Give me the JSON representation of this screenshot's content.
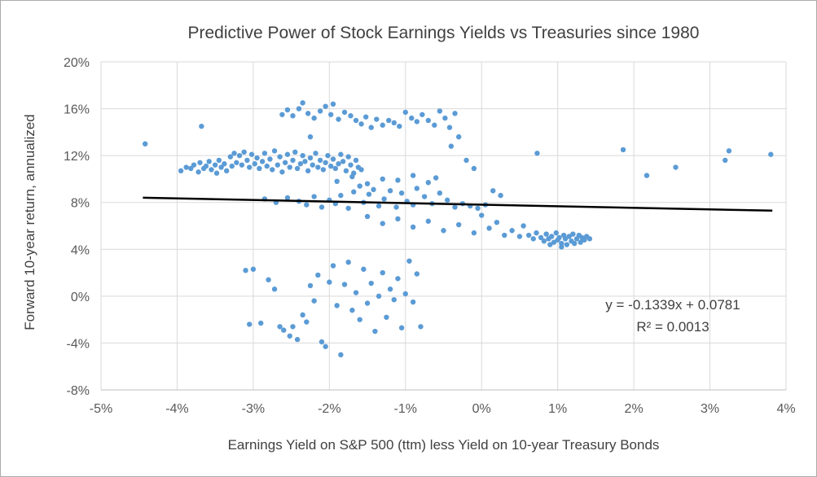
{
  "chart_data": {
    "type": "scatter",
    "title": "Predictive Power of Stock Earnings Yields vs Treasuries since 1980",
    "xlabel": "Earnings Yield on S&P 500 (ttm) less Yield on 10-year Treasury Bonds",
    "ylabel": "Forward 10-year return, annualized",
    "xlim": [
      -5,
      4
    ],
    "ylim": [
      -8,
      20
    ],
    "grid": true,
    "x_tick_values": [
      -5,
      -4,
      -3,
      -2,
      -1,
      0,
      1,
      2,
      3,
      4
    ],
    "x_tick_labels": [
      "-5%",
      "-4%",
      "-3%",
      "-2%",
      "-1%",
      "0%",
      "1%",
      "2%",
      "3%",
      "4%"
    ],
    "y_tick_values": [
      -8,
      -4,
      0,
      4,
      8,
      12,
      16,
      20
    ],
    "y_tick_labels": [
      "-8%",
      "-4%",
      "0%",
      "4%",
      "8%",
      "12%",
      "16%",
      "20%"
    ],
    "trendline": {
      "equation_label": "y = -0.1339x + 0.0781",
      "r2_label": "R² = 0.0013",
      "slope": -0.1339,
      "intercept": 0.0781,
      "x_start": -4.45,
      "x_end": 3.82
    },
    "colors": {
      "point": "#5b9bd5",
      "trendline": "#000000",
      "gridline": "#d9d9d9",
      "axisline": "#bfbfbf",
      "title_text": "#404040",
      "tick_text": "#595959"
    },
    "points": [
      [
        -4.42,
        13.0
      ],
      [
        -3.95,
        10.7
      ],
      [
        -3.88,
        11.0
      ],
      [
        -3.82,
        10.9
      ],
      [
        -3.78,
        11.2
      ],
      [
        -3.72,
        10.6
      ],
      [
        -3.68,
        14.5
      ],
      [
        -3.7,
        11.4
      ],
      [
        -3.65,
        10.9
      ],
      [
        -3.62,
        11.1
      ],
      [
        -3.58,
        11.5
      ],
      [
        -3.55,
        10.8
      ],
      [
        -3.5,
        11.2
      ],
      [
        -3.48,
        10.5
      ],
      [
        -3.45,
        11.6
      ],
      [
        -3.42,
        11.0
      ],
      [
        -3.38,
        11.3
      ],
      [
        -3.35,
        10.7
      ],
      [
        -3.3,
        11.9
      ],
      [
        -3.28,
        11.1
      ],
      [
        -3.25,
        12.2
      ],
      [
        -3.22,
        11.4
      ],
      [
        -3.18,
        12.0
      ],
      [
        -3.15,
        11.2
      ],
      [
        -3.12,
        12.3
      ],
      [
        -3.08,
        11.6
      ],
      [
        -3.05,
        11.0
      ],
      [
        -3.02,
        12.1
      ],
      [
        -2.98,
        11.3
      ],
      [
        -2.95,
        11.8
      ],
      [
        -2.92,
        10.9
      ],
      [
        -2.88,
        11.5
      ],
      [
        -2.85,
        12.2
      ],
      [
        -2.82,
        11.1
      ],
      [
        -2.78,
        11.7
      ],
      [
        -2.75,
        10.8
      ],
      [
        -2.72,
        12.4
      ],
      [
        -2.68,
        11.2
      ],
      [
        -2.65,
        11.9
      ],
      [
        -2.62,
        10.6
      ],
      [
        -2.58,
        11.4
      ],
      [
        -2.55,
        12.1
      ],
      [
        -2.52,
        11.0
      ],
      [
        -2.48,
        11.6
      ],
      [
        -2.45,
        12.3
      ],
      [
        -2.42,
        10.9
      ],
      [
        -2.38,
        11.3
      ],
      [
        -2.35,
        12.0
      ],
      [
        -2.32,
        11.5
      ],
      [
        -2.28,
        10.7
      ],
      [
        -2.25,
        11.8
      ],
      [
        -2.22,
        11.2
      ],
      [
        -2.18,
        12.2
      ],
      [
        -2.15,
        11.0
      ],
      [
        -2.12,
        11.6
      ],
      [
        -2.08,
        10.8
      ],
      [
        -2.05,
        11.4
      ],
      [
        -2.02,
        12.0
      ],
      [
        -1.98,
        11.1
      ],
      [
        -1.95,
        11.7
      ],
      [
        -1.92,
        10.9
      ],
      [
        -1.88,
        11.3
      ],
      [
        -1.85,
        12.1
      ],
      [
        -1.82,
        11.5
      ],
      [
        -1.78,
        10.7
      ],
      [
        -1.75,
        11.9
      ],
      [
        -1.72,
        11.2
      ],
      [
        -1.68,
        10.5
      ],
      [
        -1.65,
        11.6
      ],
      [
        -1.62,
        11.0
      ],
      [
        -1.58,
        10.8
      ],
      [
        -2.62,
        15.5
      ],
      [
        -2.55,
        15.9
      ],
      [
        -2.48,
        15.4
      ],
      [
        -2.4,
        16.0
      ],
      [
        -2.35,
        16.5
      ],
      [
        -2.28,
        15.6
      ],
      [
        -2.2,
        15.2
      ],
      [
        -2.12,
        15.8
      ],
      [
        -2.05,
        16.2
      ],
      [
        -1.98,
        15.5
      ],
      [
        -1.95,
        16.4
      ],
      [
        -1.88,
        15.1
      ],
      [
        -1.8,
        15.7
      ],
      [
        -1.72,
        15.4
      ],
      [
        -1.65,
        15.0
      ],
      [
        -1.58,
        14.7
      ],
      [
        -1.52,
        15.3
      ],
      [
        -1.45,
        14.4
      ],
      [
        -1.38,
        15.1
      ],
      [
        -1.3,
        14.6
      ],
      [
        -1.22,
        15.0
      ],
      [
        -1.15,
        14.8
      ],
      [
        -1.08,
        14.5
      ],
      [
        -1.0,
        15.7
      ],
      [
        -0.92,
        15.2
      ],
      [
        -0.85,
        14.9
      ],
      [
        -0.78,
        15.5
      ],
      [
        -0.7,
        15.0
      ],
      [
        -0.62,
        14.6
      ],
      [
        -0.55,
        15.8
      ],
      [
        -0.48,
        15.2
      ],
      [
        -0.42,
        14.4
      ],
      [
        -0.35,
        15.6
      ],
      [
        -0.3,
        13.6
      ],
      [
        -2.25,
        13.6
      ],
      [
        -0.4,
        12.8
      ],
      [
        -0.2,
        11.6
      ],
      [
        -0.1,
        10.9
      ],
      [
        -2.85,
        8.3
      ],
      [
        -2.7,
        8.0
      ],
      [
        -2.55,
        8.4
      ],
      [
        -2.4,
        8.1
      ],
      [
        -2.3,
        7.8
      ],
      [
        -2.2,
        8.5
      ],
      [
        -2.1,
        7.6
      ],
      [
        -2.0,
        8.2
      ],
      [
        -1.92,
        7.9
      ],
      [
        -1.85,
        8.6
      ],
      [
        -1.75,
        7.5
      ],
      [
        -1.68,
        8.9
      ],
      [
        -1.6,
        9.4
      ],
      [
        -1.55,
        8.0
      ],
      [
        -1.48,
        8.7
      ],
      [
        -1.42,
        9.1
      ],
      [
        -1.35,
        7.7
      ],
      [
        -1.28,
        8.3
      ],
      [
        -1.2,
        9.0
      ],
      [
        -1.12,
        7.6
      ],
      [
        -1.05,
        8.8
      ],
      [
        -0.98,
        8.1
      ],
      [
        -0.9,
        7.8
      ],
      [
        -0.85,
        9.2
      ],
      [
        -0.75,
        8.5
      ],
      [
        -0.65,
        7.9
      ],
      [
        -0.55,
        8.8
      ],
      [
        -0.45,
        8.2
      ],
      [
        -0.35,
        7.6
      ],
      [
        -0.25,
        7.9
      ],
      [
        -0.15,
        7.7
      ],
      [
        -0.05,
        7.5
      ],
      [
        0.05,
        7.8
      ],
      [
        0.15,
        9.0
      ],
      [
        0.25,
        8.6
      ],
      [
        -1.9,
        9.8
      ],
      [
        -1.7,
        10.2
      ],
      [
        -1.5,
        9.6
      ],
      [
        -1.3,
        10.0
      ],
      [
        -1.1,
        9.9
      ],
      [
        -0.9,
        10.3
      ],
      [
        -0.7,
        9.7
      ],
      [
        -0.6,
        10.1
      ],
      [
        -1.5,
        6.8
      ],
      [
        -1.3,
        6.2
      ],
      [
        -1.1,
        6.6
      ],
      [
        -0.9,
        5.9
      ],
      [
        -0.7,
        6.4
      ],
      [
        -0.5,
        5.6
      ],
      [
        -0.3,
        6.1
      ],
      [
        -0.1,
        5.4
      ],
      [
        0.0,
        6.9
      ],
      [
        0.1,
        5.8
      ],
      [
        0.2,
        6.3
      ],
      [
        0.3,
        5.2
      ],
      [
        0.4,
        5.6
      ],
      [
        0.5,
        5.1
      ],
      [
        0.55,
        6.0
      ],
      [
        0.62,
        5.2
      ],
      [
        0.68,
        4.9
      ],
      [
        0.72,
        5.4
      ],
      [
        0.78,
        5.0
      ],
      [
        0.82,
        4.7
      ],
      [
        0.85,
        5.3
      ],
      [
        0.88,
        4.9
      ],
      [
        0.92,
        5.1
      ],
      [
        0.95,
        4.6
      ],
      [
        0.98,
        5.4
      ],
      [
        1.0,
        4.8
      ],
      [
        1.02,
        5.0
      ],
      [
        1.05,
        4.5
      ],
      [
        1.08,
        5.2
      ],
      [
        1.1,
        4.9
      ],
      [
        1.12,
        4.4
      ],
      [
        1.15,
        5.1
      ],
      [
        1.18,
        4.7
      ],
      [
        1.2,
        5.3
      ],
      [
        1.22,
        4.5
      ],
      [
        1.25,
        4.9
      ],
      [
        1.28,
        5.2
      ],
      [
        1.3,
        4.6
      ],
      [
        1.32,
        5.0
      ],
      [
        1.35,
        4.8
      ],
      [
        1.38,
        5.1
      ],
      [
        1.42,
        4.9
      ],
      [
        1.05,
        4.2
      ],
      [
        0.9,
        4.4
      ],
      [
        -3.1,
        2.2
      ],
      [
        -3.05,
        -2.4
      ],
      [
        -2.9,
        -2.3
      ],
      [
        -2.8,
        1.4
      ],
      [
        -2.72,
        0.6
      ],
      [
        -2.65,
        -2.6
      ],
      [
        -2.6,
        -2.9
      ],
      [
        -2.52,
        -3.4
      ],
      [
        -2.48,
        -2.6
      ],
      [
        -2.42,
        -3.7
      ],
      [
        -2.35,
        -1.6
      ],
      [
        -2.3,
        -2.2
      ],
      [
        -2.25,
        0.9
      ],
      [
        -2.2,
        -0.4
      ],
      [
        -2.15,
        1.8
      ],
      [
        -2.1,
        -3.9
      ],
      [
        -2.05,
        -4.3
      ],
      [
        -2.0,
        1.2
      ],
      [
        -1.95,
        2.6
      ],
      [
        -1.9,
        -0.8
      ],
      [
        -1.85,
        -5.0
      ],
      [
        -1.8,
        1.0
      ],
      [
        -1.75,
        2.9
      ],
      [
        -1.7,
        -1.2
      ],
      [
        -1.65,
        0.3
      ],
      [
        -1.6,
        -2.0
      ],
      [
        -1.55,
        2.3
      ],
      [
        -1.5,
        -0.6
      ],
      [
        -1.45,
        1.1
      ],
      [
        -1.4,
        -3.0
      ],
      [
        -1.35,
        0.0
      ],
      [
        -1.3,
        2.0
      ],
      [
        -1.25,
        -1.8
      ],
      [
        -1.2,
        0.6
      ],
      [
        -1.15,
        -0.3
      ],
      [
        -1.1,
        1.5
      ],
      [
        -1.05,
        -2.7
      ],
      [
        -1.0,
        0.2
      ],
      [
        -0.95,
        3.0
      ],
      [
        -0.9,
        -0.5
      ],
      [
        -0.85,
        1.9
      ],
      [
        -0.8,
        -2.6
      ],
      [
        -3.0,
        2.3
      ],
      [
        0.73,
        12.2
      ],
      [
        1.86,
        12.5
      ],
      [
        2.17,
        10.3
      ],
      [
        2.55,
        11.0
      ],
      [
        3.2,
        11.6
      ],
      [
        3.25,
        12.4
      ],
      [
        3.8,
        12.1
      ]
    ]
  }
}
